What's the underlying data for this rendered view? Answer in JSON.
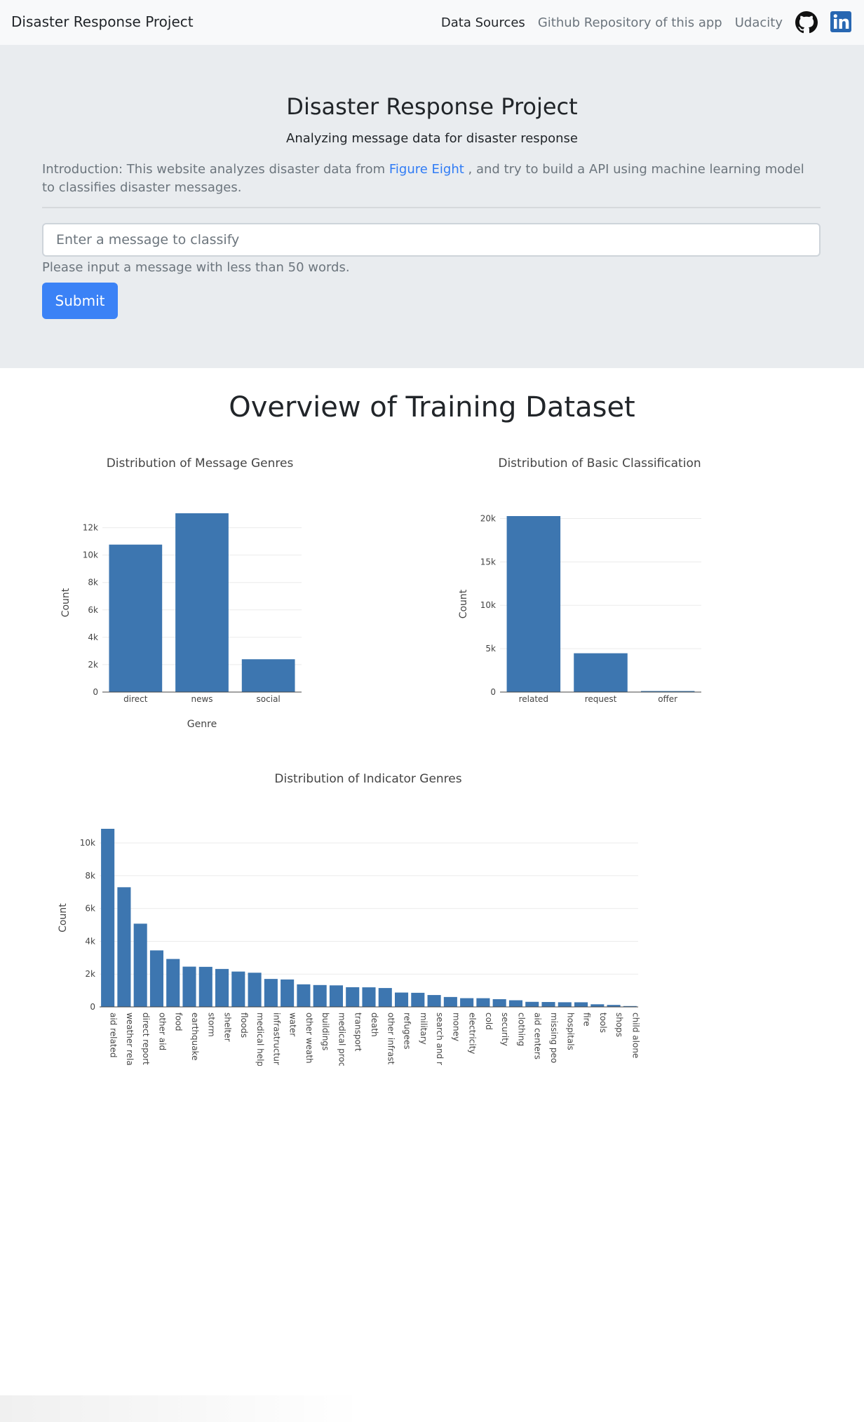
{
  "nav": {
    "brand": "Disaster Response Project",
    "links": [
      "Data Sources",
      "Github Repository of this app",
      "Udacity"
    ],
    "icons": [
      "github-icon",
      "linkedin-icon"
    ]
  },
  "jumbotron": {
    "title": "Disaster Response Project",
    "subtitle": "Analyzing message data for disaster response",
    "intro_prefix": "Introduction: This website analyzes disaster data from",
    "intro_link": "Figure Eight",
    "intro_suffix": ", and try to build a API using machine learning model to classifies disaster messages.",
    "input_placeholder": "Enter a message to classify",
    "help_text": "Please input a message with less than 50 words.",
    "submit_label": "Submit"
  },
  "overview_title": "Overview of Training Dataset",
  "colors": {
    "bar": "#3d76b0",
    "accent": "#3b82f6"
  },
  "chart_data": [
    {
      "type": "bar",
      "title": "Distribution of Message Genres",
      "xlabel": "Genre",
      "ylabel": "Count",
      "categories": [
        "direct",
        "news",
        "social"
      ],
      "values": [
        10766,
        13054,
        2396
      ],
      "ylim": [
        0,
        13054
      ],
      "yticks": [
        0,
        2000,
        4000,
        6000,
        8000,
        10000,
        12000
      ],
      "ytick_labels": [
        "0",
        "2k",
        "4k",
        "6k",
        "8k",
        "10k",
        "12k"
      ],
      "grid": true
    },
    {
      "type": "bar",
      "title": "Distribution of Basic Classification",
      "xlabel": "",
      "ylabel": "Count",
      "categories": [
        "related",
        "request",
        "offer"
      ],
      "values": [
        20282,
        4474,
        118
      ],
      "ylim": [
        0,
        20282
      ],
      "yticks": [
        0,
        5000,
        10000,
        15000,
        20000
      ],
      "ytick_labels": [
        "0",
        "5k",
        "10k",
        "15k",
        "20k"
      ],
      "grid": true
    },
    {
      "type": "bar",
      "title": "Distribution of Indicator Genres",
      "xlabel": "",
      "ylabel": "Count",
      "categories": [
        "aid related",
        "weather related",
        "direct report",
        "other aid",
        "food",
        "earthquake",
        "storm",
        "shelter",
        "floods",
        "medical help",
        "infrastructure related",
        "water",
        "other weather",
        "buildings",
        "medical products",
        "transport",
        "death",
        "other infrastructure",
        "refugees",
        "military",
        "search and rescue",
        "money",
        "electricity",
        "cold",
        "security",
        "clothing",
        "aid centers",
        "missing people",
        "hospitals",
        "fire",
        "tools",
        "shops",
        "child alone"
      ],
      "tick_labels": [
        "aid related",
        "weather rela",
        "direct report",
        "other aid",
        "food",
        "earthquake",
        "storm",
        "shelter",
        "floods",
        "medical help",
        "infrastructur",
        "water",
        "other weath",
        "buildings",
        "medical proc",
        "transport",
        "death",
        "other infrast",
        "refugees",
        "military",
        "search and r",
        "money",
        "electricity",
        "cold",
        "security",
        "clothing",
        "aid centers",
        "missing peo",
        "hospitals",
        "fire",
        "tools",
        "shops",
        "child alone"
      ],
      "values": [
        10860,
        7297,
        5075,
        3446,
        2923,
        2455,
        2443,
        2314,
        2155,
        2084,
        1705,
        1672,
        1376,
        1333,
        1313,
        1201,
        1194,
        1151,
        875,
        860,
        724,
        604,
        532,
        530,
        471,
        405,
        309,
        298,
        283,
        282,
        159,
        120,
        0
      ],
      "ylim": [
        0,
        10860
      ],
      "yticks": [
        0,
        2000,
        4000,
        6000,
        8000,
        10000
      ],
      "ytick_labels": [
        "0",
        "2k",
        "4k",
        "6k",
        "8k",
        "10k"
      ],
      "grid": true
    }
  ]
}
